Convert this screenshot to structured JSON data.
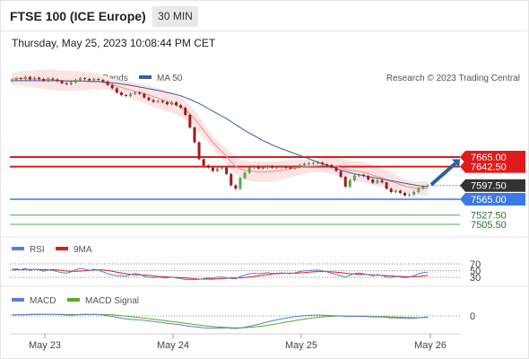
{
  "header": {
    "title": "FTSE 100 (ICE Europe)",
    "timeframe": "30 MIN",
    "timestamp": "Thursday, May 25, 2023 10:08:44 PM CET"
  },
  "legend": {
    "ma20": "MA 20 + Bollinger Bands",
    "ma50": "MA 50",
    "credit": "Research © 2023 Trading Central"
  },
  "colors": {
    "ma20": "#f28a8a",
    "ma50": "#3a5f9e",
    "bollinger_fill": "#fde3e3",
    "resistance": "#e01b1b",
    "support": "#3c78e6",
    "target": "#55aa55",
    "arrow": "#2c5f9e",
    "rsi": "#5b7fd6",
    "rsi_ma": "#e01b1b",
    "macd": "#5b7fd6",
    "macd_signal": "#5aaa2a",
    "candle_up": "#4caf50",
    "candle_down": "#a01818",
    "last_price_box": "#333333"
  },
  "icons": [
    "trend-arrow-icon"
  ],
  "chart_data": [
    {
      "type": "candlestick",
      "x_labels": [
        "May 23",
        "May 24",
        "May 25",
        "May 26"
      ],
      "ylim": [
        7480,
        7720
      ],
      "price_levels": [
        {
          "label": "7665.00",
          "value": 7665.0,
          "kind": "resistance"
        },
        {
          "label": "7642.50",
          "value": 7642.5,
          "kind": "resistance"
        },
        {
          "label": "7597.50",
          "value": 7597.5,
          "kind": "last"
        },
        {
          "label": "7565.00",
          "value": 7565.0,
          "kind": "pivot"
        },
        {
          "label": "7527.50",
          "value": 7527.5,
          "kind": "support"
        },
        {
          "label": "7505.50",
          "value": 7505.5,
          "kind": "support"
        }
      ],
      "close": [
        7848,
        7852,
        7850,
        7855,
        7849,
        7853,
        7850,
        7846,
        7851,
        7849,
        7845,
        7840,
        7838,
        7842,
        7848,
        7852,
        7850,
        7847,
        7850,
        7848,
        7844,
        7836,
        7828,
        7818,
        7812,
        7810,
        7815,
        7818,
        7815,
        7806,
        7800,
        7796,
        7798,
        7795,
        7790,
        7795,
        7788,
        7782,
        7765,
        7735,
        7700,
        7660,
        7645,
        7640,
        7632,
        7638,
        7640,
        7625,
        7598,
        7590,
        7615,
        7628,
        7640,
        7642,
        7638,
        7640,
        7643,
        7640,
        7641,
        7642,
        7640,
        7638,
        7642,
        7646,
        7649,
        7650,
        7651,
        7652,
        7648,
        7646,
        7640,
        7632,
        7618,
        7595,
        7610,
        7621,
        7623,
        7620,
        7612,
        7604,
        7610,
        7605,
        7590,
        7582,
        7585,
        7580,
        7574,
        7576,
        7582,
        7590,
        7595,
        7597.5
      ],
      "ma20": [
        7850,
        7851,
        7852,
        7851,
        7850,
        7850,
        7850,
        7849,
        7849,
        7848,
        7847,
        7846,
        7846,
        7846,
        7846,
        7846,
        7845,
        7845,
        7845,
        7844,
        7842,
        7840,
        7837,
        7833,
        7830,
        7827,
        7824,
        7821,
        7818,
        7815,
        7812,
        7808,
        7805,
        7801,
        7797,
        7793,
        7788,
        7783,
        7776,
        7767,
        7756,
        7742,
        7728,
        7714,
        7700,
        7688,
        7678,
        7667,
        7654,
        7643,
        7637,
        7634,
        7632,
        7631,
        7630,
        7630,
        7630,
        7631,
        7632,
        7634,
        7636,
        7638,
        7639,
        7640,
        7642,
        7643,
        7644,
        7644,
        7645,
        7645,
        7644,
        7643,
        7640,
        7636,
        7634,
        7632,
        7631,
        7629,
        7626,
        7622,
        7619,
        7616,
        7612,
        7607,
        7604,
        7600,
        7596,
        7594,
        7592,
        7591,
        7591,
        7591
      ],
      "ma50": [
        7846,
        7846,
        7846,
        7846,
        7846,
        7846,
        7846,
        7846,
        7846,
        7846,
        7846,
        7846,
        7845,
        7845,
        7845,
        7845,
        7845,
        7844,
        7844,
        7844,
        7843,
        7842,
        7841,
        7840,
        7838,
        7837,
        7835,
        7833,
        7831,
        7829,
        7827,
        7825,
        7823,
        7821,
        7818,
        7816,
        7813,
        7810,
        7806,
        7802,
        7797,
        7792,
        7786,
        7780,
        7774,
        7768,
        7762,
        7756,
        7749,
        7742,
        7735,
        7728,
        7722,
        7716,
        7710,
        7704,
        7699,
        7694,
        7689,
        7685,
        7681,
        7677,
        7673,
        7669,
        7665,
        7661,
        7657,
        7653,
        7649,
        7645,
        7642,
        7638,
        7634,
        7631,
        7628,
        7625,
        7623,
        7621,
        7619,
        7617,
        7615,
        7613,
        7611,
        7609,
        7607,
        7605,
        7603,
        7601,
        7599,
        7597,
        7596,
        7595
      ]
    },
    {
      "type": "line",
      "title": "RSI",
      "series": [
        {
          "name": "RSI"
        },
        {
          "name": "9MA"
        }
      ],
      "ylim": [
        15,
        85
      ],
      "y_ticks": [
        70,
        50,
        30
      ],
      "rsi": [
        56,
        58,
        55,
        60,
        52,
        57,
        54,
        49,
        55,
        52,
        48,
        44,
        42,
        47,
        55,
        60,
        57,
        52,
        57,
        53,
        47,
        40,
        36,
        33,
        32,
        31,
        37,
        41,
        38,
        30,
        27,
        25,
        28,
        26,
        24,
        28,
        24,
        22,
        18,
        16,
        17,
        19,
        22,
        24,
        23,
        27,
        28,
        25,
        22,
        21,
        30,
        35,
        40,
        42,
        40,
        42,
        44,
        41,
        42,
        43,
        42,
        40,
        44,
        48,
        51,
        52,
        53,
        54,
        50,
        47,
        42,
        37,
        33,
        27,
        35,
        41,
        43,
        40,
        36,
        32,
        37,
        34,
        28,
        26,
        30,
        28,
        25,
        27,
        33,
        40,
        44,
        46
      ],
      "rsi_ma": [
        55,
        55,
        55,
        56,
        56,
        56,
        56,
        55,
        55,
        55,
        54,
        52,
        50,
        49,
        49,
        50,
        51,
        52,
        54,
        54,
        54,
        52,
        49,
        46,
        43,
        40,
        38,
        36,
        36,
        35,
        34,
        32,
        30,
        29,
        28,
        27,
        26,
        26,
        24,
        23,
        21,
        20,
        20,
        20,
        20,
        21,
        22,
        23,
        24,
        24,
        25,
        26,
        28,
        30,
        32,
        35,
        37,
        39,
        40,
        41,
        42,
        42,
        42,
        43,
        44,
        46,
        47,
        48,
        48,
        48,
        47,
        46,
        44,
        42,
        40,
        39,
        38,
        38,
        37,
        36,
        35,
        34,
        33,
        32,
        31,
        30,
        29,
        29,
        29,
        30,
        32,
        34
      ]
    },
    {
      "type": "line",
      "title": "MACD",
      "series": [
        {
          "name": "MACD"
        },
        {
          "name": "MACD Signal"
        }
      ],
      "y_ticks": [
        0
      ],
      "macd": [
        2,
        2.2,
        2.5,
        3,
        3.2,
        3.5,
        3.6,
        3.4,
        3.5,
        3.4,
        3,
        2.5,
        1.8,
        1.5,
        2,
        3,
        3.5,
        3.2,
        3.1,
        2.8,
        2,
        0.5,
        -1,
        -3,
        -4.5,
        -6,
        -7,
        -7.5,
        -8,
        -9,
        -10,
        -11.5,
        -12.5,
        -13.5,
        -15,
        -16,
        -17,
        -18,
        -19.5,
        -21,
        -22,
        -23,
        -24,
        -24.5,
        -24.8,
        -25,
        -24.5,
        -24,
        -25,
        -25.5,
        -24.5,
        -23,
        -21,
        -19,
        -17,
        -14.5,
        -12,
        -10,
        -8,
        -6,
        -4.5,
        -3,
        -1.5,
        -0.5,
        0.5,
        1.2,
        1.5,
        1.8,
        1.5,
        1,
        0.5,
        0.2,
        0,
        -1,
        -1.2,
        -1,
        -0.8,
        -1,
        -1.5,
        -2,
        -2,
        -2.2,
        -3,
        -4,
        -4.2,
        -4.5,
        -5,
        -5.2,
        -4.8,
        -4,
        -3,
        -2
      ],
      "signal": [
        2,
        2.1,
        2.2,
        2.4,
        2.6,
        2.8,
        3,
        3.1,
        3.2,
        3.3,
        3.3,
        3.2,
        3,
        2.8,
        2.6,
        2.6,
        2.7,
        2.9,
        3,
        3,
        2.9,
        2.6,
        2.1,
        1.4,
        0.6,
        -0.3,
        -1.3,
        -2.3,
        -3.3,
        -4.4,
        -5.5,
        -6.7,
        -7.8,
        -9,
        -10.2,
        -11.4,
        -12.6,
        -13.8,
        -15,
        -16.2,
        -17.4,
        -18.6,
        -19.7,
        -20.7,
        -21.6,
        -22.4,
        -23,
        -23.4,
        -23.8,
        -24,
        -24,
        -23.8,
        -23.3,
        -22.5,
        -21.5,
        -20.3,
        -18.9,
        -17.4,
        -15.8,
        -14.2,
        -12.6,
        -11,
        -9.4,
        -7.9,
        -6.5,
        -5.1,
        -3.9,
        -2.8,
        -1.9,
        -1.2,
        -0.7,
        -0.3,
        -0.1,
        -0.2,
        -0.3,
        -0.4,
        -0.5,
        -0.6,
        -0.8,
        -1,
        -1.2,
        -1.4,
        -1.7,
        -2,
        -2.3,
        -2.6,
        -3,
        -3.3,
        -3.5,
        -3.6,
        -3.5,
        -3.3
      ]
    }
  ]
}
